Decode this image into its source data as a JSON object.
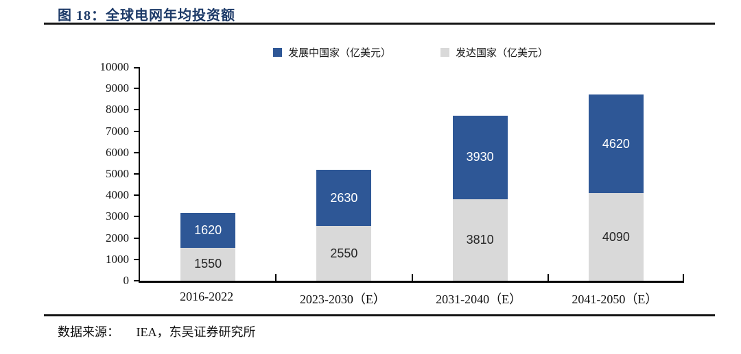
{
  "figure": {
    "title": "图 18：全球电网年均投资额",
    "source_label": "数据来源：",
    "source_text": "IEA，东吴证券研究所"
  },
  "chart_data": {
    "type": "bar",
    "stacked": true,
    "title": "全球电网年均投资额",
    "categories": [
      "2016-2022",
      "2023-2030（E）",
      "2031-2040（E）",
      "2041-2050（E）"
    ],
    "series": [
      {
        "name": "发展中国家（亿美元）",
        "stack_position": "top",
        "color": "#2e5796",
        "label_color": "#ffffff",
        "values": [
          1620,
          2630,
          3930,
          4620
        ]
      },
      {
        "name": "发达国家（亿美元）",
        "stack_position": "bottom",
        "color": "#d9d9d9",
        "label_color": "#262626",
        "values": [
          1550,
          2550,
          3810,
          4090
        ]
      }
    ],
    "totals": [
      3170,
      5180,
      7740,
      8710
    ],
    "ylim": [
      0,
      10000
    ],
    "ytick_step": 1000,
    "yticks": [
      0,
      1000,
      2000,
      3000,
      4000,
      5000,
      6000,
      7000,
      8000,
      9000,
      10000
    ],
    "grid": false,
    "legend_position": "top-center",
    "data_labels": true
  }
}
